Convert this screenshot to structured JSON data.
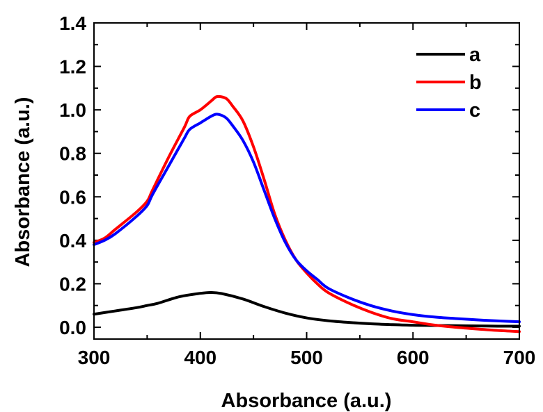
{
  "chart_data": {
    "type": "line",
    "xlabel": "Absorbance (a.u.)",
    "ylabel": "Absorbance (a.u.)",
    "xlim": [
      300,
      700
    ],
    "ylim": [
      -0.05,
      1.4
    ],
    "xticks": [
      300,
      400,
      500,
      600,
      700
    ],
    "yticks": [
      0.0,
      0.2,
      0.4,
      0.6,
      0.8,
      1.0,
      1.2,
      1.4
    ],
    "xtick_labels": [
      "300",
      "400",
      "500",
      "600",
      "700"
    ],
    "ytick_labels": [
      "0.0",
      "0.2",
      "0.4",
      "0.6",
      "0.8",
      "1.0",
      "1.2",
      "1.4"
    ],
    "grid": false,
    "legend_position": "top-right",
    "series": [
      {
        "name": "a",
        "color": "#000000",
        "x": [
          300,
          320,
          340,
          350,
          360,
          380,
          400,
          410,
          420,
          440,
          460,
          480,
          500,
          520,
          540,
          560,
          580,
          600,
          620,
          640,
          660,
          680,
          700
        ],
        "y": [
          0.06,
          0.075,
          0.09,
          0.1,
          0.11,
          0.14,
          0.156,
          0.16,
          0.155,
          0.13,
          0.095,
          0.065,
          0.043,
          0.03,
          0.022,
          0.016,
          0.012,
          0.009,
          0.008,
          0.007,
          0.006,
          0.005,
          0.005
        ]
      },
      {
        "name": "b",
        "color": "#ff0000",
        "x": [
          300,
          310,
          320,
          340,
          350,
          355,
          370,
          385,
          390,
          400,
          410,
          415,
          420,
          425,
          430,
          440,
          450,
          460,
          470,
          480,
          490,
          500,
          510,
          520,
          540,
          560,
          580,
          600,
          620,
          640,
          660,
          680,
          700
        ],
        "y": [
          0.39,
          0.41,
          0.45,
          0.53,
          0.58,
          0.63,
          0.78,
          0.92,
          0.97,
          1.0,
          1.04,
          1.06,
          1.06,
          1.05,
          1.02,
          0.95,
          0.83,
          0.68,
          0.52,
          0.4,
          0.31,
          0.25,
          0.2,
          0.16,
          0.11,
          0.07,
          0.04,
          0.025,
          0.01,
          0.0,
          -0.008,
          -0.015,
          -0.02
        ]
      },
      {
        "name": "c",
        "color": "#0000ff",
        "x": [
          300,
          310,
          320,
          340,
          350,
          355,
          370,
          385,
          390,
          400,
          410,
          415,
          420,
          425,
          430,
          440,
          450,
          460,
          470,
          480,
          490,
          500,
          510,
          520,
          540,
          560,
          580,
          600,
          620,
          640,
          660,
          680,
          700
        ],
        "y": [
          0.38,
          0.4,
          0.43,
          0.51,
          0.56,
          0.61,
          0.74,
          0.87,
          0.91,
          0.94,
          0.97,
          0.98,
          0.975,
          0.96,
          0.93,
          0.86,
          0.76,
          0.63,
          0.5,
          0.39,
          0.31,
          0.26,
          0.22,
          0.18,
          0.135,
          0.1,
          0.075,
          0.058,
          0.047,
          0.04,
          0.034,
          0.029,
          0.025
        ]
      }
    ]
  }
}
